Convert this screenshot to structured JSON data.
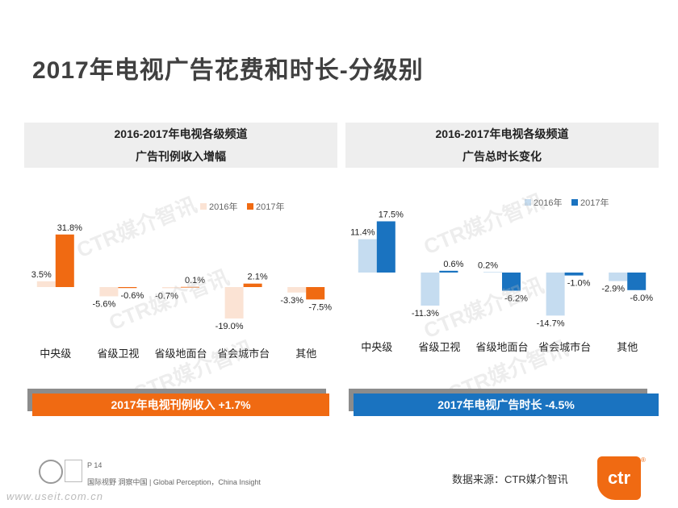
{
  "title": "2017年电视广告花费和时长-分级别",
  "left_panel": {
    "heading_line1": "2016-2017年电视各级频道",
    "heading_line2": "广告刊例收入增幅",
    "banner": "2017年电视刊例收入 +1.7%"
  },
  "right_panel": {
    "heading_line1": "2016-2017年电视各级频道",
    "heading_line2": "广告总时长变化",
    "banner": "2017年电视广告时长 -4.5%"
  },
  "watermark": "CTR媒介智讯",
  "footer": {
    "page": "P 14",
    "slogan": "国际视野  洞察中国 | Global Perception，China Insight",
    "site": "www.useit.com.cn",
    "source": "数据来源：CTR媒介智讯",
    "logo_text": "ctr",
    "logo_reg": "®"
  },
  "colors": {
    "orange_2016": "#fbe3d4",
    "orange_2017": "#f06a12",
    "blue_2016": "#c5dcf0",
    "blue_2017": "#1a73c0"
  },
  "chart_data": [
    {
      "type": "bar",
      "categories": [
        "中央级",
        "省级卫视",
        "省级地面台",
        "省会城市台",
        "其他"
      ],
      "series": [
        {
          "name": "2016年",
          "values": [
            3.5,
            -5.6,
            -0.7,
            -19.0,
            -3.3
          ],
          "labels": [
            "3.5%",
            "-5.6%",
            "-0.7%",
            "-19.0%",
            "-3.3%"
          ]
        },
        {
          "name": "2017年",
          "values": [
            31.8,
            -0.6,
            0.1,
            2.1,
            -7.5
          ],
          "labels": [
            "31.8%",
            "-0.6%",
            "0.1%",
            "2.1%",
            "-7.5%"
          ]
        }
      ],
      "legend": "top-right",
      "unit": "%"
    },
    {
      "type": "bar",
      "categories": [
        "中央级",
        "省级卫视",
        "省级地面台",
        "省会城市台",
        "其他"
      ],
      "series": [
        {
          "name": "2016年",
          "values": [
            11.4,
            -11.3,
            0.2,
            -14.7,
            -2.9
          ],
          "labels": [
            "11.4%",
            "-11.3%",
            "0.2%",
            "-14.7%",
            "-2.9%"
          ]
        },
        {
          "name": "2017年",
          "values": [
            17.5,
            0.6,
            -6.2,
            -1.0,
            -6.0
          ],
          "labels": [
            "17.5%",
            "0.6%",
            "-6.2%",
            "-1.0%",
            "-6.0%"
          ]
        }
      ],
      "legend": "top-right",
      "unit": "%"
    }
  ]
}
